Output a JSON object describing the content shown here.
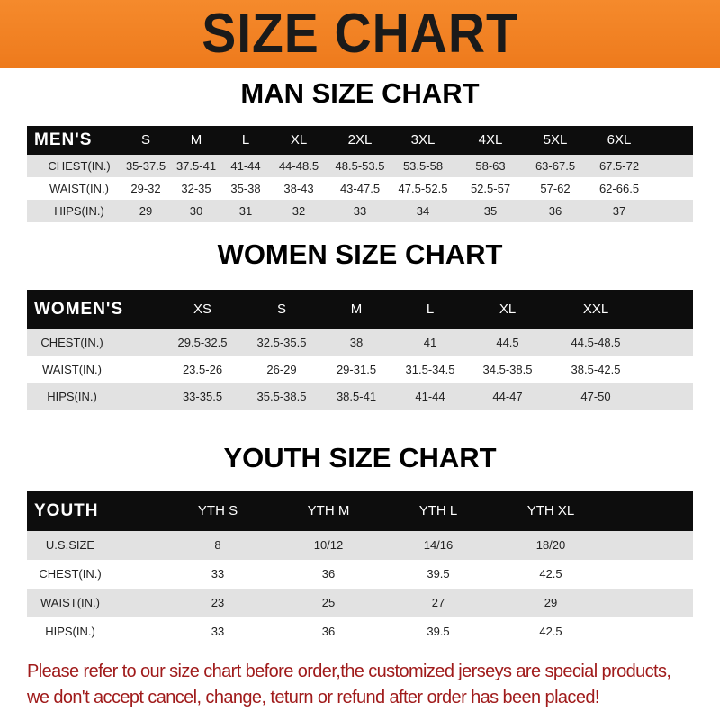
{
  "banner": {
    "title": "SIZE CHART"
  },
  "men": {
    "title": "MAN SIZE CHART",
    "header": [
      "MEN'S",
      "S",
      "M",
      "L",
      "XL",
      "2XL",
      "3XL",
      "4XL",
      "5XL",
      "6XL"
    ],
    "rows": [
      [
        "CHEST(IN.)",
        "35-37.5",
        "37.5-41",
        "41-44",
        "44-48.5",
        "48.5-53.5",
        "53.5-58",
        "58-63",
        "63-67.5",
        "67.5-72"
      ],
      [
        "WAIST(IN.)",
        "29-32",
        "32-35",
        "35-38",
        "38-43",
        "43-47.5",
        "47.5-52.5",
        "52.5-57",
        "57-62",
        "62-66.5"
      ],
      [
        "HIPS(IN.)",
        "29",
        "30",
        "31",
        "32",
        "33",
        "34",
        "35",
        "36",
        "37"
      ]
    ]
  },
  "women": {
    "title": "WOMEN SIZE CHART",
    "header": [
      "WOMEN'S",
      "XS",
      "S",
      "M",
      "L",
      "XL",
      "XXL"
    ],
    "rows": [
      [
        "CHEST(IN.)",
        "29.5-32.5",
        "32.5-35.5",
        "38",
        "41",
        "44.5",
        "44.5-48.5"
      ],
      [
        "WAIST(IN.)",
        "23.5-26",
        "26-29",
        "29-31.5",
        "31.5-34.5",
        "34.5-38.5",
        "38.5-42.5"
      ],
      [
        "HIPS(IN.)",
        "33-35.5",
        "35.5-38.5",
        "38.5-41",
        "41-44",
        "44-47",
        "47-50"
      ]
    ]
  },
  "youth": {
    "title": "YOUTH SIZE CHART",
    "header": [
      "YOUTH",
      "YTH S",
      "YTH M",
      "YTH L",
      "YTH XL"
    ],
    "rows": [
      [
        "U.S.SIZE",
        "8",
        "10/12",
        "14/16",
        "18/20"
      ],
      [
        "CHEST(IN.)",
        "33",
        "36",
        "39.5",
        "42.5"
      ],
      [
        "WAIST(IN.)",
        "23",
        "25",
        "27",
        "29"
      ],
      [
        "HIPS(IN.)",
        "33",
        "36",
        "39.5",
        "42.5"
      ]
    ]
  },
  "note": {
    "line1": "Please refer to our size chart before order,the customized jerseys are special products,",
    "line2": "we don't accept cancel, change, teturn or refund after order has been placed!"
  },
  "colors": {
    "banner": "#f07d1f",
    "header_row": "#0d0d0d",
    "stripe": "#e2e2e2",
    "note": "#a01b1b"
  }
}
